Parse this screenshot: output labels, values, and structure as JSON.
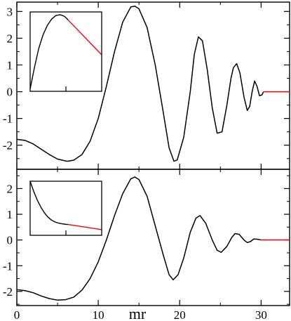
{
  "chart_data": [
    {
      "id": "upper-panel",
      "type": "line",
      "xlim": [
        0,
        33.5
      ],
      "ylim": [
        -2.9,
        3.35
      ],
      "x_ticks": [
        0,
        10,
        20,
        30
      ],
      "y_ticks": [
        {
          "value": 3,
          "label": "3"
        },
        {
          "value": 2,
          "label": "2"
        },
        {
          "value": 1,
          "label": "1"
        },
        {
          "value": 0,
          "label": "0"
        },
        {
          "value": -1,
          "label": "-1"
        },
        {
          "value": -2,
          "label": "-2"
        }
      ],
      "grid": false,
      "series": [
        {
          "color": "#000000",
          "points": [
            [
              0,
              -1.78
            ],
            [
              1.0,
              -1.82
            ],
            [
              2.0,
              -1.95
            ],
            [
              3.0,
              -2.15
            ],
            [
              4.0,
              -2.35
            ],
            [
              5.0,
              -2.52
            ],
            [
              6.2,
              -2.6
            ],
            [
              7.0,
              -2.56
            ],
            [
              8.0,
              -2.35
            ],
            [
              9.0,
              -1.85
            ],
            [
              10.0,
              -1.0
            ],
            [
              11.0,
              0.2
            ],
            [
              12.0,
              1.5
            ],
            [
              13.0,
              2.6
            ],
            [
              14.0,
              3.17
            ],
            [
              14.5,
              3.2
            ],
            [
              15.0,
              3.1
            ],
            [
              16.0,
              2.4
            ],
            [
              17.0,
              1.0
            ],
            [
              18.0,
              -0.8
            ],
            [
              18.7,
              -2.1
            ],
            [
              19.3,
              -2.6
            ],
            [
              19.7,
              -2.55
            ],
            [
              20.5,
              -1.7
            ],
            [
              21.3,
              0.0
            ],
            [
              21.8,
              1.4
            ],
            [
              22.3,
              2.05
            ],
            [
              22.8,
              1.9
            ],
            [
              23.4,
              0.8
            ],
            [
              24.0,
              -0.6
            ],
            [
              24.6,
              -1.55
            ],
            [
              25.2,
              -1.5
            ],
            [
              25.8,
              -0.5
            ],
            [
              26.3,
              0.5
            ],
            [
              26.6,
              0.9
            ],
            [
              27.0,
              1.05
            ],
            [
              27.4,
              0.7
            ],
            [
              27.9,
              -0.2
            ],
            [
              28.3,
              -0.7
            ],
            [
              28.6,
              -0.55
            ],
            [
              28.9,
              0.0
            ],
            [
              29.2,
              0.4
            ],
            [
              29.5,
              0.2
            ],
            [
              29.8,
              -0.15
            ],
            [
              30.1,
              -0.12
            ],
            [
              30.3,
              0.0
            ]
          ]
        },
        {
          "color": "#ff0000",
          "points": [
            [
              30.3,
              0.0
            ],
            [
              33.5,
              0.0
            ]
          ]
        }
      ],
      "inset": {
        "xlim": [
          0,
          10
        ],
        "ylim": [
          0,
          10
        ],
        "x_ticks": [
          5
        ],
        "y_ticks": [],
        "series": [
          {
            "color": "#000000",
            "points": [
              [
                0.0,
                0.3
              ],
              [
                0.6,
                3.0
              ],
              [
                1.2,
                5.4
              ],
              [
                1.8,
                7.1
              ],
              [
                2.4,
                8.3
              ],
              [
                3.0,
                9.1
              ],
              [
                3.6,
                9.55
              ],
              [
                4.2,
                9.65
              ],
              [
                4.8,
                9.45
              ],
              [
                5.3,
                9.0
              ]
            ]
          },
          {
            "color": "#ff0000",
            "points": [
              [
                5.3,
                9.0
              ],
              [
                10.0,
                4.6
              ]
            ]
          }
        ]
      }
    },
    {
      "id": "lower-panel",
      "type": "line",
      "xlim": [
        0,
        33.5
      ],
      "ylim": [
        -2.55,
        2.75
      ],
      "x_ticks": [
        0,
        10,
        20,
        30
      ],
      "y_ticks": [
        {
          "value": 2,
          "label": "2"
        },
        {
          "value": 1,
          "label": "1"
        },
        {
          "value": 0,
          "label": "0"
        },
        {
          "value": -1,
          "label": "-1"
        },
        {
          "value": -2,
          "label": "-2"
        }
      ],
      "x_tick_labels": [
        "0",
        "10",
        "20",
        "30"
      ],
      "xlabel": "mr",
      "grid": false,
      "series": [
        {
          "color": "#000000",
          "points": [
            [
              0,
              -1.93
            ],
            [
              1.0,
              -1.97
            ],
            [
              2.0,
              -2.05
            ],
            [
              3.0,
              -2.18
            ],
            [
              4.0,
              -2.28
            ],
            [
              5.0,
              -2.34
            ],
            [
              6.0,
              -2.32
            ],
            [
              7.0,
              -2.22
            ],
            [
              8.0,
              -1.95
            ],
            [
              9.0,
              -1.5
            ],
            [
              10.0,
              -0.85
            ],
            [
              11.0,
              0.0
            ],
            [
              12.0,
              0.95
            ],
            [
              13.0,
              1.8
            ],
            [
              14.0,
              2.38
            ],
            [
              14.5,
              2.45
            ],
            [
              15.0,
              2.35
            ],
            [
              16.0,
              1.7
            ],
            [
              17.0,
              0.55
            ],
            [
              18.0,
              -0.6
            ],
            [
              18.7,
              -1.35
            ],
            [
              19.2,
              -1.55
            ],
            [
              19.8,
              -1.35
            ],
            [
              20.5,
              -0.7
            ],
            [
              21.3,
              0.3
            ],
            [
              22.0,
              0.85
            ],
            [
              22.5,
              0.95
            ],
            [
              23.2,
              0.65
            ],
            [
              24.0,
              0.0
            ],
            [
              24.6,
              -0.4
            ],
            [
              25.1,
              -0.48
            ],
            [
              25.8,
              -0.25
            ],
            [
              26.4,
              0.1
            ],
            [
              26.8,
              0.25
            ],
            [
              27.3,
              0.22
            ],
            [
              27.9,
              0.0
            ],
            [
              28.3,
              -0.1
            ],
            [
              28.7,
              -0.06
            ],
            [
              29.1,
              0.04
            ],
            [
              29.5,
              0.03
            ],
            [
              30.0,
              0.0
            ]
          ]
        },
        {
          "color": "#ff0000",
          "points": [
            [
              30.0,
              0.0
            ],
            [
              33.5,
              0.0
            ]
          ]
        }
      ],
      "inset": {
        "xlim": [
          0,
          10
        ],
        "ylim": [
          0,
          10
        ],
        "x_ticks": [
          5
        ],
        "y_ticks": [],
        "series": [
          {
            "color": "#000000",
            "points": [
              [
                0.0,
                10.0
              ],
              [
                0.5,
                8.1
              ],
              [
                1.0,
                6.5
              ],
              [
                1.5,
                5.2
              ],
              [
                2.0,
                4.15
              ],
              [
                2.5,
                3.35
              ],
              [
                3.0,
                2.8
              ],
              [
                3.5,
                2.45
              ],
              [
                4.0,
                2.25
              ],
              [
                4.5,
                2.12
              ],
              [
                5.0,
                2.03
              ],
              [
                5.3,
                2.0
              ]
            ]
          },
          {
            "color": "#ff0000",
            "points": [
              [
                5.3,
                2.0
              ],
              [
                10.0,
                1.05
              ]
            ]
          }
        ]
      }
    }
  ]
}
